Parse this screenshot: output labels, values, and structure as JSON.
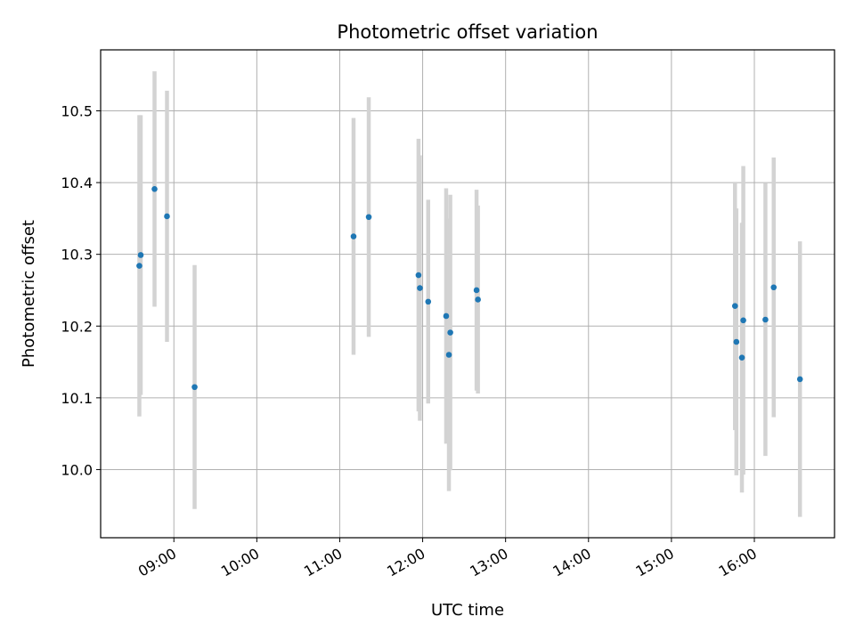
{
  "chart_data": {
    "type": "scatter",
    "title": "Photometric offset variation",
    "xlabel": "UTC time",
    "ylabel": "Photometric offset",
    "x_ticks": [
      "09:00",
      "10:00",
      "11:00",
      "12:00",
      "13:00",
      "14:00",
      "15:00",
      "16:00"
    ],
    "y_ticks": [
      "10.0",
      "10.1",
      "10.2",
      "10.3",
      "10.4",
      "10.5"
    ],
    "xlim": [
      "08:07",
      "16:58"
    ],
    "ylim": [
      9.905,
      10.585
    ],
    "grid": true,
    "colors": {
      "marker": "#1f77b4",
      "errorbar": "#d3d3d3",
      "grid": "#b0b0b0"
    },
    "points": [
      {
        "t": "08:35",
        "y": 10.284,
        "err": 0.21
      },
      {
        "t": "08:36",
        "y": 10.299,
        "err": 0.195
      },
      {
        "t": "08:46",
        "y": 10.391,
        "err": 0.164
      },
      {
        "t": "08:55",
        "y": 10.353,
        "err": 0.175
      },
      {
        "t": "09:15",
        "y": 10.115,
        "err": 0.17
      },
      {
        "t": "11:10",
        "y": 10.325,
        "err": 0.165
      },
      {
        "t": "11:21",
        "y": 10.352,
        "err": 0.167
      },
      {
        "t": "11:57",
        "y": 10.271,
        "err": 0.19
      },
      {
        "t": "11:58",
        "y": 10.253,
        "err": 0.185
      },
      {
        "t": "12:04",
        "y": 10.234,
        "err": 0.142
      },
      {
        "t": "12:17",
        "y": 10.214,
        "err": 0.178
      },
      {
        "t": "12:19",
        "y": 10.16,
        "err": 0.19
      },
      {
        "t": "12:20",
        "y": 10.191,
        "err": 0.192
      },
      {
        "t": "12:39",
        "y": 10.25,
        "err": 0.14
      },
      {
        "t": "12:40",
        "y": 10.237,
        "err": 0.131
      },
      {
        "t": "15:46",
        "y": 10.228,
        "err": 0.173
      },
      {
        "t": "15:47",
        "y": 10.178,
        "err": 0.186
      },
      {
        "t": "15:51",
        "y": 10.156,
        "err": 0.188
      },
      {
        "t": "15:52",
        "y": 10.208,
        "err": 0.215
      },
      {
        "t": "16:08",
        "y": 10.209,
        "err": 0.19
      },
      {
        "t": "16:14",
        "y": 10.254,
        "err": 0.181
      },
      {
        "t": "16:33",
        "y": 10.126,
        "err": 0.192
      }
    ]
  }
}
